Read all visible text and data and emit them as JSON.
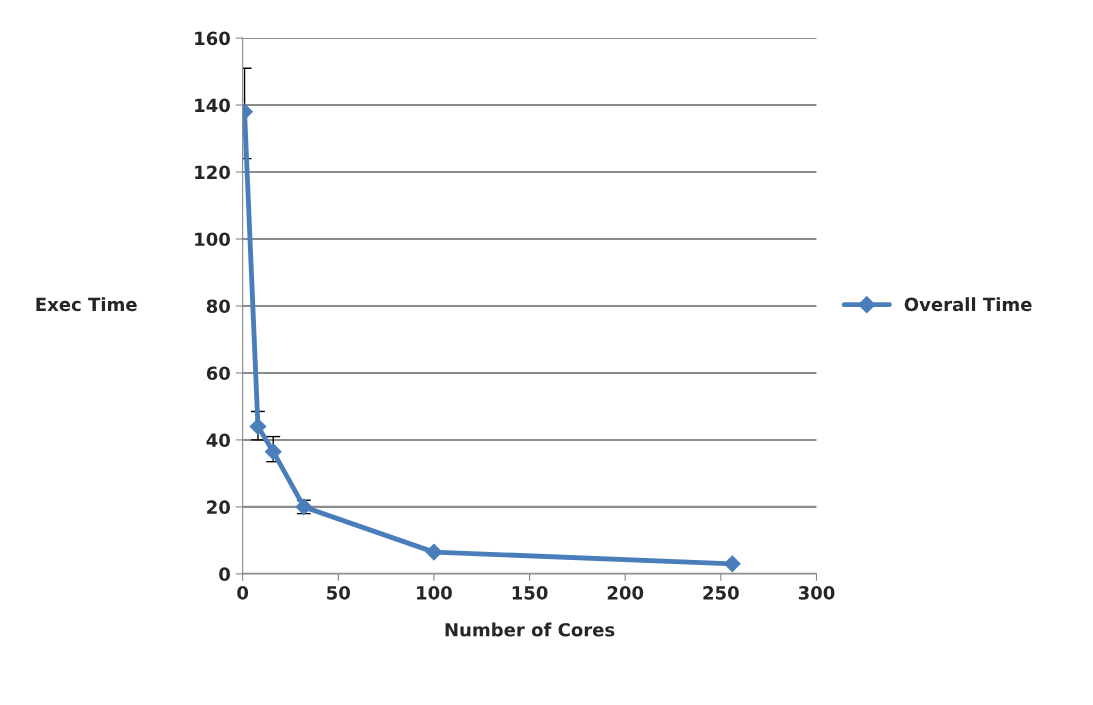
{
  "chart_data": {
    "type": "line",
    "xlabel": "Number of Cores",
    "ylabel": "Exec Time",
    "x": [
      1,
      8,
      16,
      32,
      100,
      256
    ],
    "series": [
      {
        "name": "Overall Time",
        "color": "#4a7ebb",
        "values": [
          138,
          44,
          36.5,
          20,
          6.5,
          3
        ],
        "errors": [
          [
            124,
            151
          ],
          [
            40,
            48.5
          ],
          [
            33.5,
            41
          ],
          [
            18,
            22
          ],
          null,
          null
        ]
      }
    ],
    "xlim": [
      0,
      300
    ],
    "xticks": [
      0,
      50,
      100,
      150,
      200,
      250,
      300
    ],
    "ylim": [
      0,
      160
    ],
    "yticks": [
      0,
      20,
      40,
      60,
      80,
      100,
      120,
      140,
      160
    ],
    "grid": "y",
    "legend": "right",
    "marker": "diamond",
    "line_style": "solid"
  }
}
